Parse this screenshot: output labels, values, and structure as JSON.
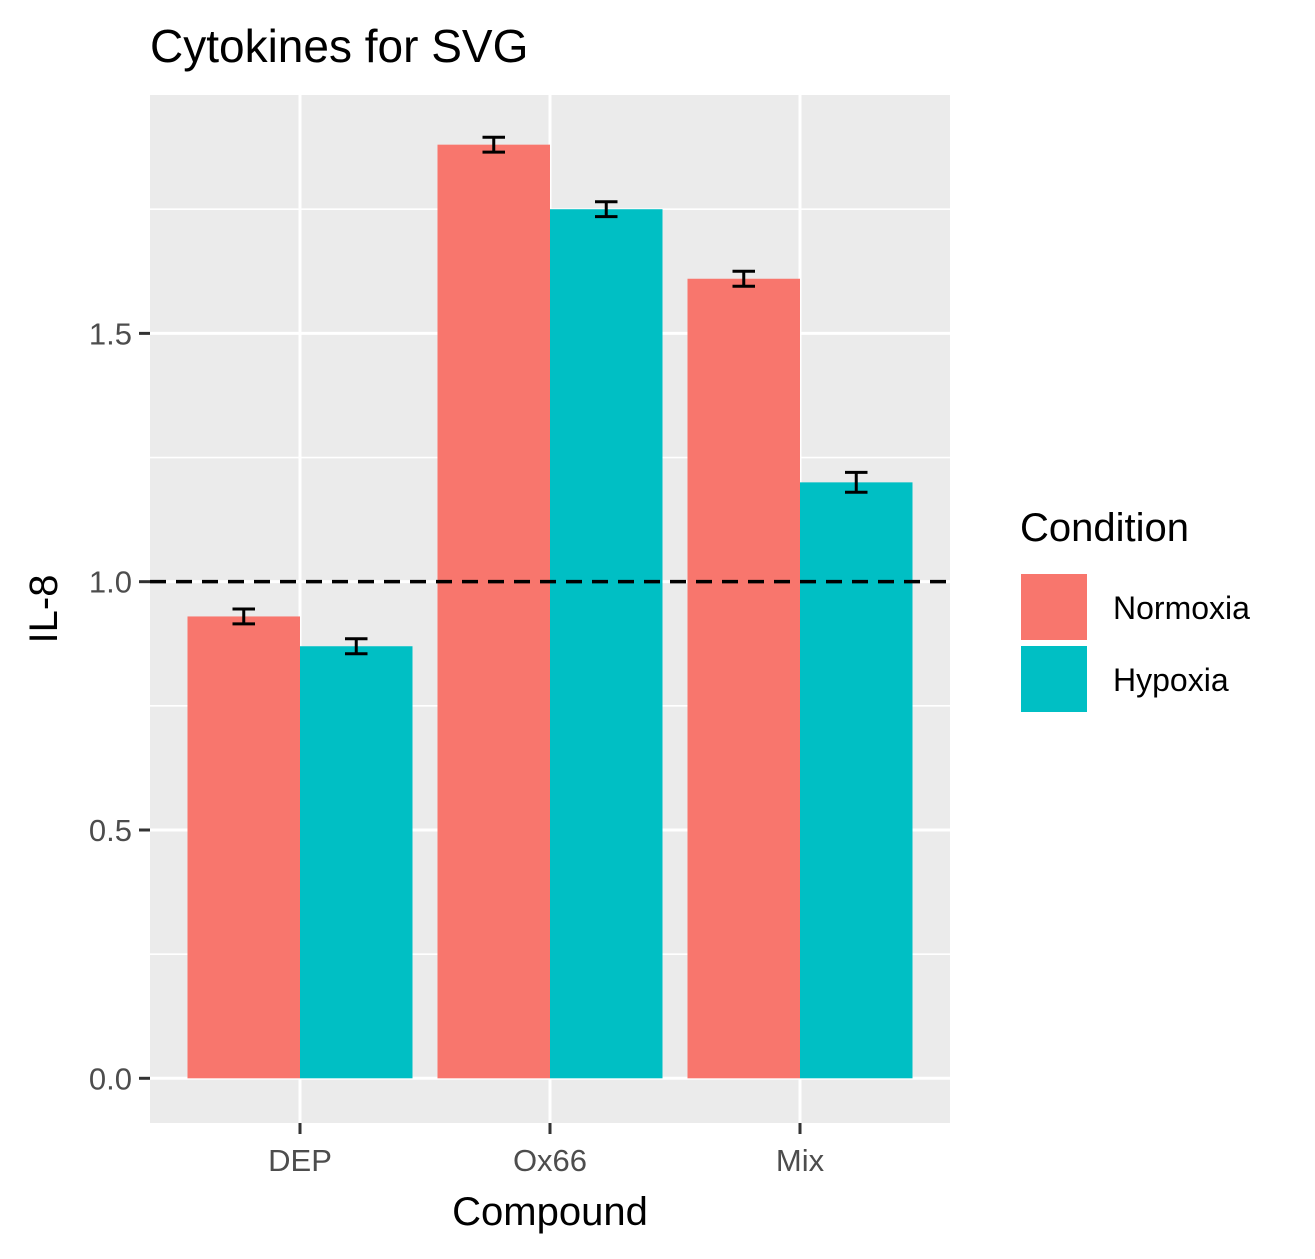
{
  "chart_data": {
    "type": "bar",
    "title": "Cytokines for SVG",
    "xlabel": "Compound",
    "ylabel": "IL-8",
    "categories": [
      "DEP",
      "Ox66",
      "Mix"
    ],
    "series": [
      {
        "name": "Normoxia",
        "color": "#F8766D",
        "values": [
          0.93,
          1.88,
          1.61
        ],
        "errors": [
          0.015,
          0.015,
          0.015
        ]
      },
      {
        "name": "Hypoxia",
        "color": "#00BFC4",
        "values": [
          0.87,
          1.75,
          1.2
        ],
        "errors": [
          0.015,
          0.015,
          0.02
        ]
      }
    ],
    "ylim": [
      -0.09,
      1.98
    ],
    "yticks": [
      0.0,
      0.5,
      1.0,
      1.5
    ],
    "ytick_labels": [
      "0.0",
      "0.5",
      "1.0",
      "1.5"
    ],
    "reference_line": {
      "y": 1.0,
      "style": "dashed",
      "color": "#000000"
    },
    "legend": {
      "title": "Condition",
      "placement": "right"
    },
    "grid": true,
    "panel_background": "#EBEBEB"
  }
}
